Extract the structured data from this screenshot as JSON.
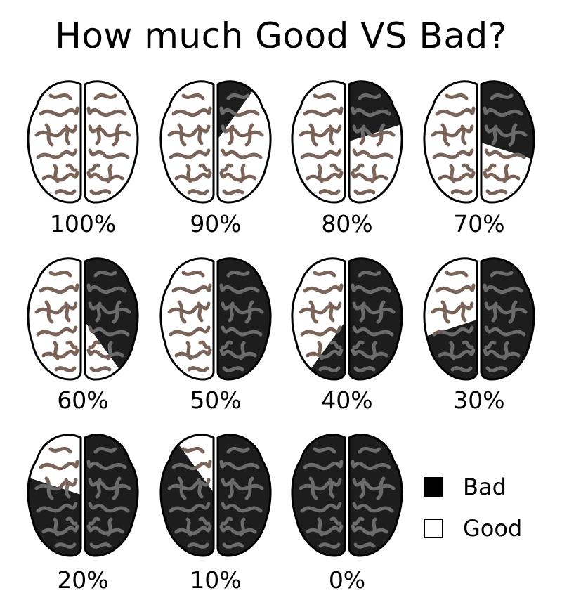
{
  "title": "How much Good VS Bad?",
  "legend": [
    {
      "label": "Bad",
      "color": "#000000"
    },
    {
      "label": "Good",
      "color": "#ffffff"
    }
  ],
  "colors": {
    "good_fill": "#ffffff",
    "good_fold": "#7a6358",
    "bad_fill": "#1d1d1d",
    "bad_fold": "#6b6b6b",
    "outline": "#000000"
  },
  "chart_data": {
    "type": "pie",
    "title": "How much Good VS Bad?",
    "series": [
      {
        "name": "Good",
        "values": [
          100,
          90,
          80,
          70,
          60,
          50,
          40,
          30,
          20,
          10,
          0
        ]
      },
      {
        "name": "Bad",
        "values": [
          0,
          10,
          20,
          30,
          40,
          50,
          60,
          70,
          80,
          90,
          100
        ]
      }
    ],
    "categories": [
      "100%",
      "90%",
      "80%",
      "70%",
      "60%",
      "50%",
      "40%",
      "30%",
      "20%",
      "10%",
      "0%"
    ]
  }
}
